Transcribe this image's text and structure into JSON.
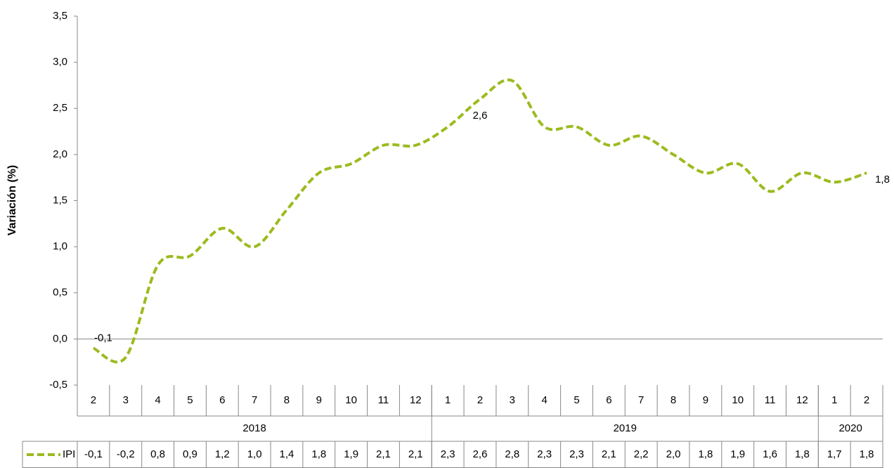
{
  "chart_data": {
    "type": "line",
    "y_axis_label": "Variación (%)",
    "groups": [
      {
        "name": "2018",
        "categories": [
          "2",
          "3",
          "4",
          "5",
          "6",
          "7",
          "8",
          "9",
          "10",
          "11",
          "12"
        ]
      },
      {
        "name": "2019",
        "categories": [
          "1",
          "2",
          "3",
          "4",
          "5",
          "6",
          "7",
          "8",
          "9",
          "10",
          "11",
          "12"
        ]
      },
      {
        "name": "2020",
        "categories": [
          "1",
          "2"
        ]
      }
    ],
    "series": [
      {
        "name": "IPI",
        "color": "#9bbb1f",
        "values": [
          -0.1,
          -0.2,
          0.8,
          0.9,
          1.2,
          1.0,
          1.4,
          1.8,
          1.9,
          2.1,
          2.1,
          2.3,
          2.6,
          2.8,
          2.3,
          2.3,
          2.1,
          2.2,
          2.0,
          1.8,
          1.9,
          1.6,
          1.8,
          1.7,
          1.8
        ],
        "value_labels": [
          "-0,1",
          "-0,2",
          "0,8",
          "0,9",
          "1,2",
          "1,0",
          "1,4",
          "1,8",
          "1,9",
          "2,1",
          "2,1",
          "2,3",
          "2,6",
          "2,8",
          "2,3",
          "2,3",
          "2,1",
          "2,2",
          "2,0",
          "1,8",
          "1,9",
          "1,6",
          "1,8",
          "1,7",
          "1,8"
        ]
      }
    ],
    "ylim": [
      -0.5,
      3.5
    ],
    "yticks": [
      {
        "value": -0.5,
        "label": "-0,5"
      },
      {
        "value": 0,
        "label": "0,0"
      },
      {
        "value": 0.5,
        "label": "0,5"
      },
      {
        "value": 1,
        "label": "1,0"
      },
      {
        "value": 1.5,
        "label": "1,5"
      },
      {
        "value": 2,
        "label": "2,0"
      },
      {
        "value": 2.5,
        "label": "2,5"
      },
      {
        "value": 3,
        "label": "3,0"
      },
      {
        "value": 3.5,
        "label": "3,5"
      }
    ]
  }
}
